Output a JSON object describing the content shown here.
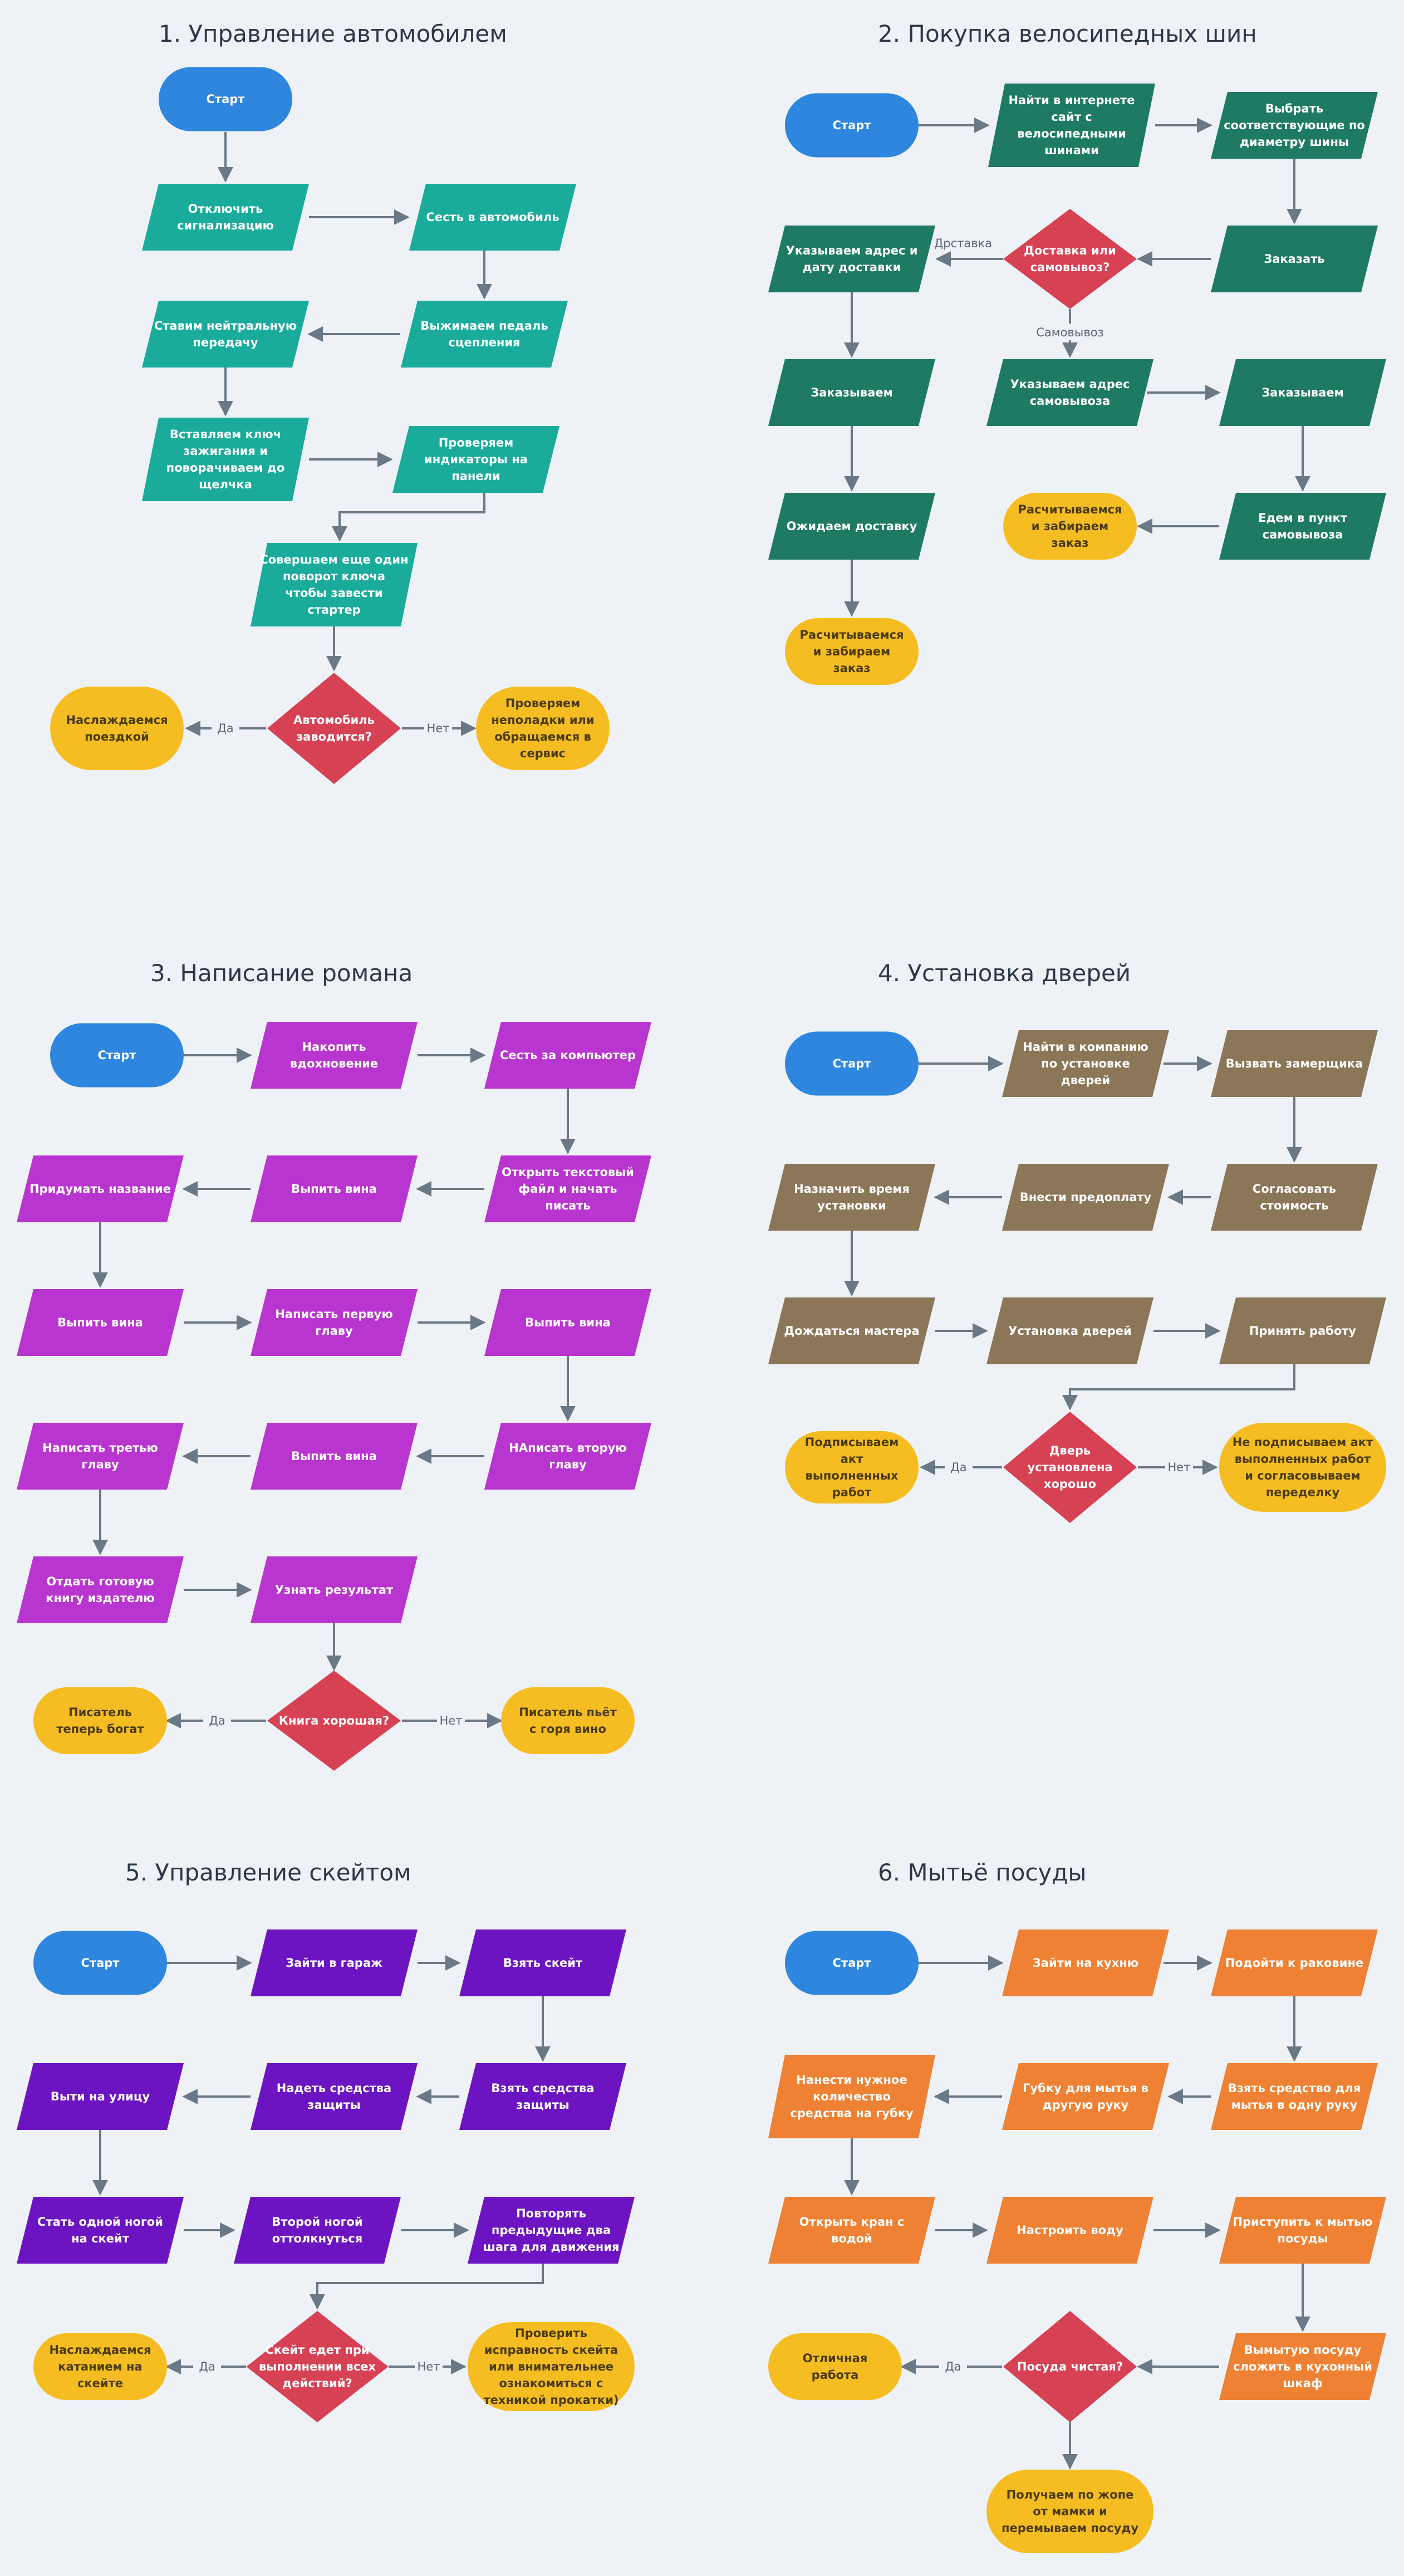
{
  "colors": {
    "start": "#2e86de",
    "terminal": "#f5bd22",
    "decision": "#d64154",
    "edge": "#6b7886",
    "teal": "#1aab9b",
    "green": "#1e7a62",
    "magenta": "#b935cf",
    "brown": "#8b7658",
    "purple": "#6c14c2",
    "orange": "#ee8133"
  },
  "titles": [
    "1. Управление автомобилем",
    "2. Покупка велосипедных шин",
    "3. Написание романа",
    "4. Установка дверей",
    "5. Управление скейтом",
    "6. Мытьё посуды"
  ],
  "nodes": {
    "d1": {
      "start": "Старт",
      "n1": "Отключить сигнализацию",
      "n2": "Сесть в автомобиль",
      "n3": "Выжимаем педаль сцепления",
      "n4": "Ставим нейтральную передачу",
      "n5": "Вставляем ключ зажигания и поворачиваем до щелчка",
      "n6": "Проверяем индикаторы на панели",
      "n7": "Совершаем еще один поворот ключа чтобы завести стартер",
      "q": "Автомобиль заводится?",
      "yes": "Наслаждаемся поездкой",
      "no": "Проверяем неполадки или обращаемся в сервис"
    },
    "d2": {
      "start": "Старт",
      "n1": "Найти в интернете сайт с велосипедными шинами",
      "n2": "Выбрать соответствующие по диаметру шины",
      "n3": "Заказать",
      "q": "Доставка или самовывоз?",
      "n4": "Указываем адрес и дату доставки",
      "n5": "Заказываем",
      "n6": "Ожидаем доставку",
      "t1": "Расчитываемся и забираем заказ",
      "n7": "Указываем адрес самовывоза",
      "n8": "Заказываем",
      "n9": "Едем в пункт самовывоза",
      "t2": "Расчитываемся и забираем заказ"
    },
    "d3": {
      "start": "Старт",
      "n1": "Накопить вдохновение",
      "n2": "Сесть за компьютер",
      "n3": "Открыть текстовый файл и начать писать",
      "n4": "Выпить вина",
      "n5": "Придумать название",
      "n6": "Выпить вина",
      "n7": "Написать первую главу",
      "n8": "Выпить вина",
      "n9": "НАписать вторую главу",
      "n10": "Выпить вина",
      "n11": "Написать третью главу",
      "n12": "Отдать готовую книгу издателю",
      "n13": "Узнать результат",
      "q": "Книга хорошая?",
      "yes": "Писатель теперь богат",
      "no": "Писатель пьёт с горя вино"
    },
    "d4": {
      "start": "Старт",
      "n1": "Найти в компанию по установке дверей",
      "n2": "Вызвать замерщика",
      "n3": "Согласовать стоимость",
      "n4": "Внести предоплату",
      "n5": "Назначить время установки",
      "n6": "Дождаться мастера",
      "n7": "Установка дверей",
      "n8": "Принять работу",
      "q": "Дверь установлена хорошо",
      "yes": "Подписываем акт выполненных работ",
      "no": "Не подписываем акт выполненных работ и согласовываем переделку"
    },
    "d5": {
      "start": "Старт",
      "n1": "Зайти в гараж",
      "n2": "Взять скейт",
      "n3": "Взять  средства защиты",
      "n4": "Надеть средства защиты",
      "n5": "Выти на улицу",
      "n6": "Стать одной ногой на скейт",
      "n7": "Второй ногой оттолкнуться",
      "n8": "Повторять предыдущие два шага для движения",
      "q": "Скейт едет при выполнении всех действий?",
      "yes": "Наслаждаемся катанием на скейте",
      "no": "Проверить исправность скейта или внимательнее ознакомиться с техникой прокатки)"
    },
    "d6": {
      "start": "Старт",
      "n1": "Зайти на кухню",
      "n2": "Подойти к раковине",
      "n3": "Взять  средство для мытья в одну руку",
      "n4": "Губку для мытья в другую руку",
      "n5": "Нанести нужное количество средства на губку",
      "n6": "Открыть кран с водой",
      "n7": "Настроить воду",
      "n8": "Приступить к мытью посуды",
      "n9": "Вымытую посуду сложить в кухонный шкаф",
      "q": "Посуда чистая?",
      "yes": "Отличная работа",
      "no": "Получаем по жопе от мамки и перемываем посуду"
    }
  },
  "edge_labels": {
    "yes": "Да",
    "no": "Нет",
    "delivery": "Дрставка",
    "pickup": "Самовывоз"
  }
}
